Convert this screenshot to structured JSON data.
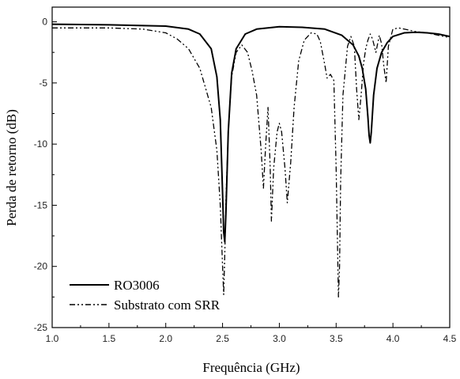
{
  "chart_data": {
    "type": "line",
    "title": "",
    "xlabel": "Frequência (GHz)",
    "ylabel": "Perda de retorno (dB)",
    "xlim": [
      1.0,
      4.5
    ],
    "ylim": [
      -25,
      1.2
    ],
    "xticks": [
      1.0,
      1.5,
      2.0,
      2.5,
      3.0,
      3.5,
      4.0,
      4.5
    ],
    "yticks": [
      0,
      -5,
      -10,
      -15,
      -20,
      -25
    ],
    "xtick_labels": [
      "1.0",
      "1.5",
      "2.0",
      "2.5",
      "3.0",
      "3.5",
      "4.0",
      "4.5"
    ],
    "ytick_labels": [
      "0",
      "-5",
      "-10",
      "-15",
      "-20",
      "-25"
    ],
    "grid": false,
    "legend_position": "bottom-left",
    "series": [
      {
        "name": "RO3006",
        "style": "solid",
        "color": "#000000",
        "x": [
          1.0,
          1.5,
          2.0,
          2.2,
          2.3,
          2.4,
          2.45,
          2.48,
          2.5,
          2.51,
          2.52,
          2.53,
          2.55,
          2.58,
          2.62,
          2.7,
          2.8,
          3.0,
          3.2,
          3.4,
          3.55,
          3.65,
          3.7,
          3.73,
          3.76,
          3.78,
          3.79,
          3.8,
          3.81,
          3.83,
          3.86,
          3.9,
          3.95,
          4.0,
          4.1,
          4.2,
          4.3,
          4.4,
          4.5
        ],
        "y": [
          -0.2,
          -0.25,
          -0.35,
          -0.6,
          -1.0,
          -2.2,
          -4.5,
          -8.0,
          -14.0,
          -17.2,
          -18.0,
          -15.5,
          -9.0,
          -4.2,
          -2.2,
          -1.0,
          -0.6,
          -0.4,
          -0.45,
          -0.6,
          -1.1,
          -1.9,
          -2.8,
          -3.8,
          -5.5,
          -7.8,
          -9.3,
          -9.9,
          -9.0,
          -6.0,
          -3.8,
          -2.5,
          -1.7,
          -1.2,
          -0.9,
          -0.85,
          -0.9,
          -1.0,
          -1.2
        ]
      },
      {
        "name": "Substrato com SRR",
        "style": "dash-dot-dot",
        "color": "#000000",
        "x": [
          1.0,
          1.5,
          1.8,
          2.0,
          2.1,
          2.2,
          2.3,
          2.4,
          2.45,
          2.48,
          2.5,
          2.51,
          2.52,
          2.53,
          2.55,
          2.58,
          2.62,
          2.67,
          2.72,
          2.76,
          2.8,
          2.84,
          2.86,
          2.88,
          2.9,
          2.92,
          2.93,
          2.95,
          2.98,
          3.0,
          3.02,
          3.05,
          3.07,
          3.1,
          3.13,
          3.17,
          3.22,
          3.28,
          3.33,
          3.36,
          3.4,
          3.42,
          3.45,
          3.48,
          3.5,
          3.52,
          3.53,
          3.54,
          3.56,
          3.6,
          3.63,
          3.66,
          3.68,
          3.7,
          3.72,
          3.74,
          3.76,
          3.78,
          3.8,
          3.82,
          3.85,
          3.88,
          3.9,
          3.92,
          3.94,
          3.96,
          4.0,
          4.05,
          4.1,
          4.2,
          4.3,
          4.4,
          4.5
        ],
        "y": [
          -0.5,
          -0.5,
          -0.6,
          -0.9,
          -1.4,
          -2.2,
          -3.8,
          -7.0,
          -10.5,
          -15.0,
          -20.0,
          -22.3,
          -19.0,
          -14.5,
          -9.0,
          -4.5,
          -2.5,
          -1.9,
          -2.5,
          -4.0,
          -6.0,
          -10.5,
          -13.6,
          -10.0,
          -7.0,
          -12.0,
          -16.3,
          -12.0,
          -9.0,
          -8.3,
          -9.0,
          -12.0,
          -14.8,
          -11.5,
          -7.0,
          -3.2,
          -1.5,
          -0.9,
          -1.0,
          -1.6,
          -3.5,
          -4.6,
          -4.3,
          -4.8,
          -12.0,
          -22.5,
          -20.0,
          -13.0,
          -6.0,
          -2.0,
          -1.2,
          -2.0,
          -5.5,
          -8.0,
          -6.0,
          -3.5,
          -2.2,
          -1.5,
          -1.0,
          -1.4,
          -2.5,
          -1.1,
          -1.8,
          -3.6,
          -5.0,
          -2.0,
          -0.6,
          -0.5,
          -0.6,
          -0.8,
          -0.9,
          -1.1,
          -1.3
        ]
      }
    ]
  }
}
